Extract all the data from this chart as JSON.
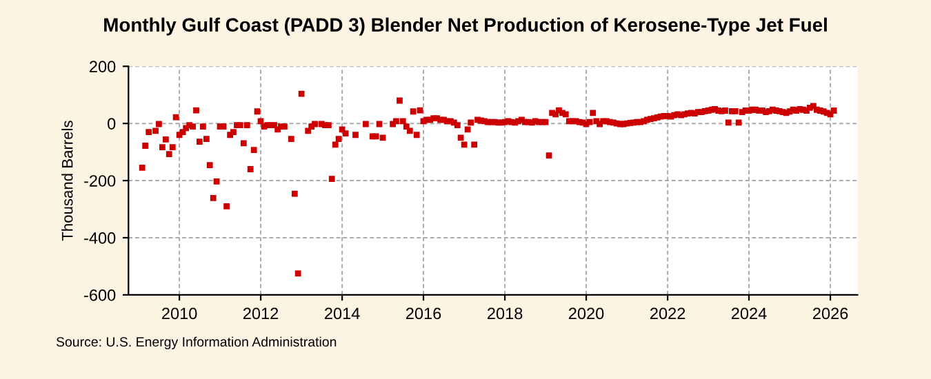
{
  "chart_data": {
    "type": "scatter",
    "title": "Monthly Gulf Coast (PADD 3) Blender Net Production of Kerosene-Type Jet Fuel",
    "ylabel": "Thousand Barrels",
    "annotations": [
      "Source: U.S. Energy Information Administration"
    ],
    "marker": "square",
    "grid": true,
    "xlim": [
      "2008-10",
      "2026-09"
    ],
    "xticks": [
      "2010",
      "2012",
      "2014",
      "2016",
      "2018",
      "2020",
      "2022",
      "2024",
      "2026"
    ],
    "ylim": [
      -600,
      200
    ],
    "yticks": [
      -600,
      -400,
      -200,
      0,
      200
    ],
    "series": [
      {
        "color": "#cc0000",
        "x": [
          "2009-02",
          "2009-03",
          "2009-04",
          "2009-06",
          "2009-07",
          "2009-08",
          "2009-09",
          "2009-10",
          "2009-11",
          "2009-12",
          "2010-01",
          "2010-02",
          "2010-03",
          "2010-04",
          "2010-05",
          "2010-06",
          "2010-07",
          "2010-08",
          "2010-09",
          "2010-10",
          "2010-11",
          "2010-12",
          "2011-01",
          "2011-02",
          "2011-03",
          "2011-04",
          "2011-05",
          "2011-06",
          "2011-07",
          "2011-08",
          "2011-09",
          "2011-10",
          "2011-11",
          "2011-12",
          "2012-01",
          "2012-02",
          "2012-03",
          "2012-04",
          "2012-05",
          "2012-06",
          "2012-07",
          "2012-08",
          "2012-10",
          "2012-11",
          "2012-12",
          "2013-01",
          "2013-03",
          "2013-04",
          "2013-05",
          "2013-07",
          "2013-08",
          "2013-09",
          "2013-10",
          "2013-11",
          "2013-12",
          "2014-01",
          "2014-02",
          "2014-05",
          "2014-08",
          "2014-10",
          "2014-11",
          "2014-12",
          "2015-01",
          "2015-04",
          "2015-05",
          "2015-06",
          "2015-07",
          "2015-08",
          "2015-09",
          "2015-10",
          "2015-11",
          "2015-12",
          "2016-01",
          "2016-02",
          "2016-03",
          "2016-04",
          "2016-05",
          "2016-06",
          "2016-07",
          "2016-08",
          "2016-09",
          "2016-10",
          "2016-11",
          "2016-12",
          "2017-01",
          "2017-02",
          "2017-03",
          "2017-04",
          "2017-05",
          "2017-06",
          "2017-07",
          "2017-08",
          "2017-09",
          "2017-10",
          "2017-11",
          "2017-12",
          "2018-01",
          "2018-02",
          "2018-03",
          "2018-04",
          "2018-05",
          "2018-06",
          "2018-07",
          "2018-08",
          "2018-09",
          "2018-10",
          "2018-11",
          "2018-12",
          "2019-01",
          "2019-02",
          "2019-03",
          "2019-04",
          "2019-05",
          "2019-06",
          "2019-07",
          "2019-08",
          "2019-09",
          "2019-10",
          "2019-11",
          "2019-12",
          "2020-01",
          "2020-02",
          "2020-03",
          "2020-04",
          "2020-05",
          "2020-06",
          "2020-07",
          "2020-08",
          "2020-09",
          "2020-10",
          "2020-11",
          "2020-12",
          "2021-01",
          "2021-02",
          "2021-03",
          "2021-04",
          "2021-05",
          "2021-06",
          "2021-07",
          "2021-08",
          "2021-09",
          "2021-10",
          "2021-11",
          "2021-12",
          "2022-01",
          "2022-02",
          "2022-03",
          "2022-04",
          "2022-05",
          "2022-06",
          "2022-07",
          "2022-08",
          "2022-09",
          "2022-10",
          "2022-11",
          "2022-12",
          "2023-01",
          "2023-02",
          "2023-03",
          "2023-04",
          "2023-05",
          "2023-06",
          "2023-07",
          "2023-08",
          "2023-09",
          "2023-10",
          "2023-11",
          "2023-12",
          "2024-01",
          "2024-02",
          "2024-03",
          "2024-04",
          "2024-05",
          "2024-06",
          "2024-07",
          "2024-08",
          "2024-09",
          "2024-10",
          "2024-11",
          "2024-12",
          "2025-01",
          "2025-02",
          "2025-03",
          "2025-04",
          "2025-05",
          "2025-06",
          "2025-07",
          "2025-08",
          "2025-09",
          "2025-10",
          "2025-11",
          "2025-12",
          "2026-01",
          "2026-02"
        ],
        "values": [
          -155,
          -78,
          -30,
          -26,
          -2,
          -83,
          -56,
          -107,
          -83,
          22,
          -40,
          -30,
          -16,
          -6,
          -11,
          46,
          -64,
          -11,
          -54,
          -146,
          -261,
          -203,
          -11,
          -11,
          -290,
          -40,
          -30,
          -6,
          -6,
          -69,
          -6,
          -160,
          -93,
          42,
          8,
          -11,
          -6,
          -6,
          -6,
          -21,
          -11,
          -11,
          -54,
          -246,
          -525,
          104,
          -26,
          -11,
          -2,
          -2,
          -6,
          -6,
          -194,
          -74,
          -54,
          -21,
          -35,
          -40,
          -2,
          -45,
          -45,
          -2,
          -50,
          -2,
          8,
          80,
          8,
          -11,
          -26,
          42,
          -40,
          46,
          8,
          13,
          13,
          18,
          18,
          13,
          13,
          8,
          8,
          3,
          -6,
          -50,
          -74,
          -21,
          3,
          -74,
          13,
          10,
          8,
          5,
          5,
          5,
          3,
          3,
          5,
          8,
          5,
          3,
          8,
          13,
          5,
          5,
          3,
          8,
          5,
          5,
          5,
          -112,
          37,
          32,
          46,
          37,
          32,
          8,
          8,
          8,
          5,
          3,
          -2,
          5,
          37,
          8,
          -2,
          8,
          8,
          5,
          3,
          0,
          -2,
          -2,
          0,
          2,
          3,
          5,
          5,
          8,
          13,
          16,
          18,
          21,
          24,
          26,
          26,
          24,
          29,
          32,
          29,
          32,
          35,
          37,
          35,
          40,
          40,
          43,
          45,
          48,
          50,
          45,
          43,
          45,
          3,
          43,
          43,
          3,
          40,
          45,
          45,
          48,
          48,
          45,
          45,
          40,
          43,
          48,
          45,
          43,
          40,
          37,
          42,
          48,
          45,
          50,
          48,
          45,
          55,
          61,
          48,
          45,
          42,
          37,
          32,
          45
        ]
      }
    ]
  }
}
